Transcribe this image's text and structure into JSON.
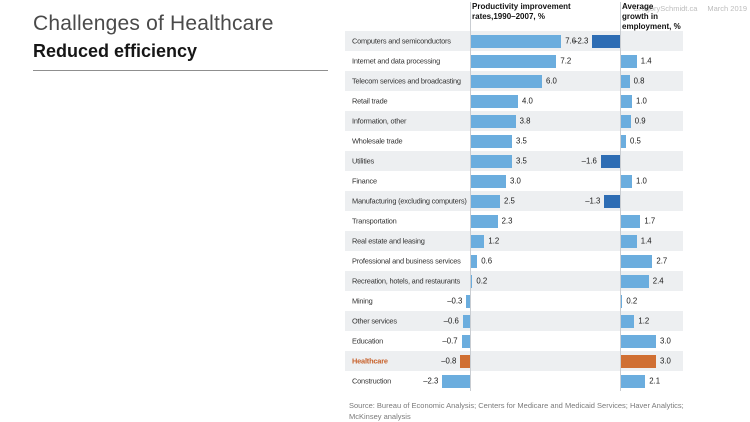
{
  "slide": {
    "title": "Challenges of Healthcare",
    "subtitle": "Reduced efficiency",
    "watermark": {
      "site": "GregorySchmidt.ca",
      "date": "March 2019"
    },
    "source": {
      "line1": "Source: Bureau of Economic Analysis; Centers for Medicare and Medicaid Services; Haver Analytics;",
      "line2": "McKinsey analysis"
    }
  },
  "chart_data": {
    "type": "bar",
    "orientation": "horizontal",
    "columns": [
      {
        "id": "productivity",
        "title": "Productivity improvement rates,1990–2007, %",
        "title_lines": [
          "Productivity improvement",
          "rates,1990–2007, %"
        ]
      },
      {
        "id": "employment",
        "title": "Average growth in employment, %",
        "title_lines": [
          "Average",
          "growth in",
          "employment, %"
        ]
      }
    ],
    "categories": [
      "Computers and semiconductors",
      "Internet and data processing",
      "Telecom services and broadcasting",
      "Retail trade",
      "Information, other",
      "Wholesale trade",
      "Utilities",
      "Finance",
      "Manufacturing (excluding computers)",
      "Transportation",
      "Real estate and leasing",
      "Professional and business services",
      "Recreation, hotels, and restaurants",
      "Mining",
      "Other services",
      "Education",
      "Healthcare",
      "Construction"
    ],
    "series": [
      {
        "name": "Productivity improvement rates,1990–2007, %",
        "values": [
          7.6,
          7.2,
          6.0,
          4.0,
          3.8,
          3.5,
          3.5,
          3.0,
          2.5,
          2.3,
          1.2,
          0.6,
          0.2,
          -0.3,
          -0.6,
          -0.7,
          -0.8,
          -2.3
        ],
        "labels": [
          "7.6",
          "7.2",
          "6.0",
          "4.0",
          "3.8",
          "3.5",
          "3.5",
          "3.0",
          "2.5",
          "2.3",
          "1.2",
          "0.6",
          "0.2",
          "–0.3",
          "–0.6",
          "–0.7",
          "–0.8",
          "–2.3"
        ]
      },
      {
        "name": "Average growth in employment, %",
        "values": [
          -2.3,
          1.4,
          0.8,
          1.0,
          0.9,
          0.5,
          -1.6,
          1.0,
          -1.3,
          1.7,
          1.4,
          2.7,
          2.4,
          0.2,
          1.2,
          3.0,
          3.0,
          2.1
        ],
        "labels": [
          "–2.3",
          "1.4",
          "0.8",
          "1.0",
          "0.9",
          "0.5",
          "–1.6",
          "1.0",
          "–1.3",
          "1.7",
          "1.4",
          "2.7",
          "2.4",
          "0.2",
          "1.2",
          "3.0",
          "3.0",
          "2.1"
        ]
      }
    ],
    "highlight_category": "Healthcare",
    "row_shading": "alternating, first row shaded",
    "colors": {
      "bar_positive": "#6BADDE",
      "bar_negative_employment": "#2E6DB4",
      "bar_highlight": "#D06F33",
      "highlight_text": "#C8622C",
      "row_shade": "#EDEFF1",
      "axis_line": "#C9CDD2"
    }
  }
}
